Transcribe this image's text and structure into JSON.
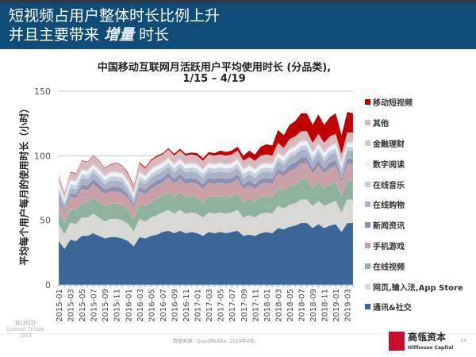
{
  "header": {
    "line1": "短视频占用户整体时长比例上升",
    "line2_pre": "并且主要带来 ",
    "line2_em": "增量",
    "line2_post": " 时长"
  },
  "chart_data": {
    "type": "area",
    "stacked": true,
    "title": "中国移动互联网月活跃用户平均使用时长 (分品类),",
    "subtitle": "1/15 – 4/19",
    "ylabel": "平均每个用户每月的使用时长（小时）",
    "xlabel": "",
    "ylim": [
      0,
      150
    ],
    "yticks": [
      0,
      50,
      100,
      150
    ],
    "grid": true,
    "legend": "right",
    "categories": [
      "2015-01",
      "2015-02",
      "2015-03",
      "2015-04",
      "2015-05",
      "2015-06",
      "2015-07",
      "2015-08",
      "2015-09",
      "2015-10",
      "2015-11",
      "2015-12",
      "2016-01",
      "2016-02",
      "2016-03",
      "2016-04",
      "2016-05",
      "2016-06",
      "2016-07",
      "2016-08",
      "2016-09",
      "2016-10",
      "2016-11",
      "2016-12",
      "2017-01",
      "2017-02",
      "2017-03",
      "2017-04",
      "2017-05",
      "2017-06",
      "2017-07",
      "2017-08",
      "2017-09",
      "2017-10",
      "2017-11",
      "2017-12",
      "2018-01",
      "2018-02",
      "2018-03",
      "2018-04",
      "2018-05",
      "2018-06",
      "2018-07",
      "2018-08",
      "2018-09",
      "2018-10",
      "2018-11",
      "2018-12",
      "2019-01",
      "2019-02",
      "2019-03",
      "2019-04"
    ],
    "xticklabels": [
      "2015-01",
      "2015-03",
      "2015-05",
      "2015-07",
      "2015-09",
      "2015-11",
      "2016-01",
      "2016-03",
      "2016-05",
      "2016-07",
      "2016-09",
      "2016-11",
      "2017-01",
      "2017-03",
      "2017-05",
      "2017-07",
      "2017-09",
      "2017-11",
      "2018-01",
      "2018-03",
      "2018-05",
      "2018-07",
      "2018-09",
      "2018-11",
      "2019-01",
      "2019-03"
    ],
    "series": [
      {
        "name": "通讯&社交",
        "color": "#3a6797",
        "values": [
          34,
          28,
          35,
          34,
          38,
          38,
          40,
          38,
          36,
          37,
          37,
          36,
          34,
          30,
          37,
          36,
          38,
          39,
          41,
          42,
          40,
          42,
          40,
          41,
          40,
          38,
          41,
          40,
          41,
          40,
          41,
          42,
          38,
          39,
          38,
          40,
          41,
          40,
          44,
          43,
          45,
          46,
          48,
          48,
          44,
          47,
          44,
          46,
          47,
          41,
          48,
          48
        ]
      },
      {
        "name": "网页,输入法,App Store",
        "color": "#d8d8d4",
        "values": [
          13,
          11,
          13,
          13,
          14,
          14,
          15,
          14,
          13,
          14,
          14,
          14,
          13,
          11,
          14,
          13,
          14,
          15,
          15,
          16,
          15,
          16,
          15,
          15,
          15,
          14,
          15,
          15,
          15,
          15,
          15,
          16,
          14,
          15,
          14,
          15,
          15,
          15,
          17,
          16,
          17,
          17,
          18,
          18,
          17,
          18,
          17,
          17,
          18,
          15,
          18,
          18
        ]
      },
      {
        "name": "在线视频",
        "color": "#8fb29c",
        "values": [
          11,
          9,
          11,
          11,
          12,
          12,
          13,
          12,
          12,
          12,
          12,
          12,
          11,
          10,
          12,
          12,
          12,
          13,
          13,
          14,
          13,
          14,
          13,
          13,
          13,
          12,
          13,
          13,
          13,
          13,
          13,
          14,
          12,
          13,
          12,
          13,
          13,
          13,
          14,
          14,
          15,
          15,
          16,
          16,
          14,
          15,
          14,
          15,
          15,
          13,
          15,
          15
        ]
      },
      {
        "name": "手机游戏",
        "color": "#c9a0a6",
        "values": [
          8,
          7,
          9,
          9,
          10,
          9,
          10,
          10,
          9,
          9,
          9,
          9,
          9,
          8,
          9,
          9,
          10,
          10,
          10,
          11,
          10,
          10,
          10,
          10,
          10,
          10,
          10,
          10,
          10,
          10,
          10,
          10,
          10,
          10,
          10,
          10,
          10,
          10,
          11,
          11,
          11,
          12,
          12,
          12,
          11,
          12,
          11,
          12,
          12,
          10,
          12,
          12
        ]
      },
      {
        "name": "新闻资讯",
        "color": "#8e90ae",
        "values": [
          3,
          3,
          3,
          3,
          4,
          4,
          4,
          4,
          4,
          4,
          4,
          4,
          3,
          3,
          4,
          4,
          4,
          4,
          4,
          4,
          4,
          4,
          4,
          4,
          4,
          4,
          4,
          4,
          4,
          4,
          4,
          4,
          4,
          4,
          4,
          4,
          4,
          4,
          4,
          4,
          5,
          5,
          5,
          5,
          4,
          5,
          4,
          5,
          5,
          4,
          5,
          5
        ]
      },
      {
        "name": "在线购物",
        "color": "#a9b2c6",
        "values": [
          4,
          4,
          4,
          4,
          5,
          5,
          5,
          5,
          4,
          5,
          5,
          5,
          4,
          4,
          5,
          4,
          5,
          5,
          5,
          5,
          5,
          5,
          5,
          5,
          5,
          5,
          5,
          5,
          5,
          5,
          5,
          5,
          5,
          5,
          5,
          5,
          5,
          5,
          6,
          5,
          6,
          6,
          6,
          6,
          6,
          6,
          6,
          6,
          6,
          5,
          6,
          6
        ]
      },
      {
        "name": "在线音乐",
        "color": "#c3d0e2",
        "values": [
          3,
          2,
          3,
          3,
          3,
          3,
          3,
          3,
          3,
          3,
          3,
          3,
          3,
          2,
          3,
          3,
          3,
          3,
          3,
          3,
          3,
          3,
          3,
          3,
          3,
          3,
          3,
          3,
          3,
          3,
          3,
          3,
          3,
          3,
          3,
          3,
          3,
          3,
          3,
          3,
          3,
          3,
          3,
          3,
          3,
          3,
          3,
          3,
          3,
          3,
          3,
          3
        ]
      },
      {
        "name": "数字阅读",
        "color": "#f2f2f2",
        "values": [
          3,
          2,
          3,
          3,
          3,
          3,
          3,
          3,
          3,
          3,
          3,
          3,
          3,
          2,
          3,
          3,
          3,
          3,
          3,
          3,
          3,
          3,
          3,
          3,
          3,
          3,
          3,
          3,
          3,
          3,
          3,
          3,
          3,
          3,
          3,
          3,
          3,
          3,
          3,
          3,
          3,
          3,
          3,
          3,
          3,
          3,
          3,
          3,
          3,
          3,
          3,
          3
        ]
      },
      {
        "name": "金融理财",
        "color": "#c9ccd3",
        "values": [
          1,
          1,
          1,
          1,
          1,
          1,
          1,
          1,
          1,
          1,
          1,
          1,
          1,
          1,
          1,
          1,
          1,
          1,
          1,
          1,
          1,
          1,
          1,
          1,
          1,
          1,
          1,
          1,
          1,
          1,
          1,
          1,
          1,
          1,
          1,
          1,
          1,
          1,
          1,
          1,
          1,
          1,
          1,
          1,
          1,
          1,
          1,
          1,
          1,
          1,
          1,
          1
        ]
      },
      {
        "name": "其他",
        "color": "#d8b9bd",
        "values": [
          5,
          4,
          5,
          5,
          6,
          6,
          6,
          6,
          5,
          5,
          6,
          5,
          5,
          5,
          6,
          5,
          6,
          6,
          6,
          6,
          6,
          6,
          6,
          6,
          6,
          6,
          6,
          6,
          6,
          6,
          6,
          6,
          6,
          6,
          6,
          6,
          6,
          6,
          7,
          6,
          7,
          7,
          7,
          7,
          7,
          7,
          7,
          7,
          7,
          6,
          7,
          7
        ]
      },
      {
        "name": "移动短视频",
        "color": "#c00000",
        "values": [
          0.5,
          0.5,
          0.5,
          0.5,
          0.5,
          0.5,
          0.5,
          0.5,
          0.5,
          0.5,
          0.5,
          0.5,
          1,
          1,
          1,
          1,
          1,
          1,
          1,
          1,
          1.5,
          1.5,
          1.5,
          1.5,
          2,
          2,
          2,
          2,
          3,
          3,
          3,
          3,
          4,
          5,
          5,
          7,
          8,
          8,
          10,
          10,
          11,
          12,
          14,
          14,
          14,
          15,
          14,
          15,
          16,
          15,
          16,
          15
        ]
      }
    ]
  },
  "footer": {
    "bond_line1": "BOND",
    "bond_line2": "Internet Trends",
    "bond_line3": "2019",
    "source": "数据来源：QuestMobile, 2019年4月。",
    "brand_cn": "高瓴资本",
    "brand_en": "Hillhouse Capital",
    "page": "14"
  }
}
